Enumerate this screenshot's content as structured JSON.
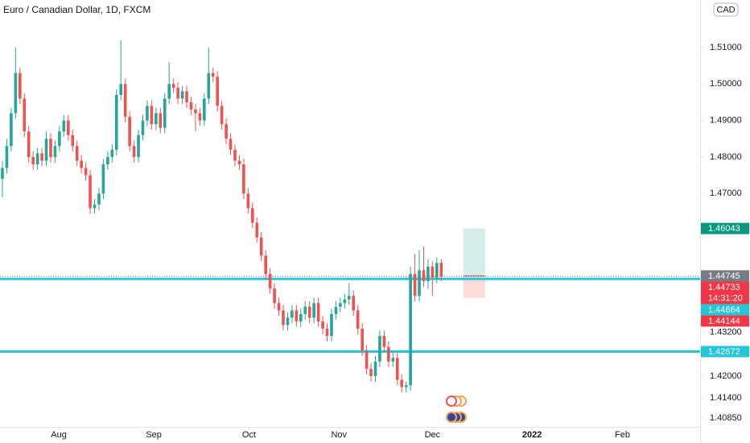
{
  "chart_data": {
    "type": "candlestick",
    "title": "Euro / Canadian Dollar, 1D, FXCM",
    "currency": "CAD",
    "up_color": "#26a69a",
    "down_color": "#ef5350",
    "xlim": [
      -0.55,
      159
    ],
    "ylim": [
      1.4061,
      1.523
    ],
    "xticks": [
      {
        "value": 12.85,
        "label": "Aug"
      },
      {
        "value": 34.5,
        "label": "Sep"
      },
      {
        "value": 56.2,
        "label": "Oct"
      },
      {
        "value": 76.7,
        "label": "Nov"
      },
      {
        "value": 98,
        "label": "Dec"
      },
      {
        "value": 120.7,
        "label": "2022"
      },
      {
        "value": 141.3,
        "label": "Feb"
      }
    ],
    "yticks": [
      {
        "value": 1.51,
        "label": "1.51000"
      },
      {
        "value": 1.5,
        "label": "1.50000"
      },
      {
        "value": 1.49,
        "label": "1.49000"
      },
      {
        "value": 1.48,
        "label": "1.48000"
      },
      {
        "value": 1.47,
        "label": "1.47000"
      },
      {
        "value": 1.432,
        "label": "1.43200"
      },
      {
        "value": 1.42,
        "label": "1.42000"
      },
      {
        "value": 1.414,
        "label": "1.41400"
      },
      {
        "value": 1.4085,
        "label": "1.40850"
      }
    ],
    "candles": [
      [
        1.474,
        1.479,
        1.469,
        1.477
      ],
      [
        1.477,
        1.485,
        1.4755,
        1.483
      ],
      [
        1.483,
        1.4935,
        1.4815,
        1.492
      ],
      [
        1.492,
        1.51,
        1.4905,
        1.503
      ],
      [
        1.503,
        1.5045,
        1.4945,
        1.496
      ],
      [
        1.496,
        1.4975,
        1.4855,
        1.487
      ],
      [
        1.487,
        1.4885,
        1.4785,
        1.48
      ],
      [
        1.48,
        1.4815,
        1.4765,
        1.478
      ],
      [
        1.478,
        1.4825,
        1.4765,
        1.481
      ],
      [
        1.481,
        1.4825,
        1.4775,
        1.479
      ],
      [
        1.479,
        1.487,
        1.4775,
        1.485
      ],
      [
        1.485,
        1.4865,
        1.4785,
        1.48
      ],
      [
        1.48,
        1.4845,
        1.4785,
        1.483
      ],
      [
        1.483,
        1.4885,
        1.4815,
        1.487
      ],
      [
        1.487,
        1.4915,
        1.4855,
        1.49
      ],
      [
        1.49,
        1.4915,
        1.4845,
        1.486
      ],
      [
        1.486,
        1.4875,
        1.4815,
        1.483
      ],
      [
        1.483,
        1.4845,
        1.4775,
        1.479
      ],
      [
        1.479,
        1.4805,
        1.4755,
        1.477
      ],
      [
        1.477,
        1.4785,
        1.4735,
        1.475
      ],
      [
        1.475,
        1.4765,
        1.4645,
        1.466
      ],
      [
        1.466,
        1.4685,
        1.4645,
        1.467
      ],
      [
        1.467,
        1.4715,
        1.4655,
        1.47
      ],
      [
        1.47,
        1.4795,
        1.4685,
        1.478
      ],
      [
        1.478,
        1.4815,
        1.4765,
        1.48
      ],
      [
        1.48,
        1.4835,
        1.4785,
        1.482
      ],
      [
        1.482,
        1.4985,
        1.4805,
        1.497
      ],
      [
        1.497,
        1.512,
        1.4955,
        1.5
      ],
      [
        1.5,
        1.5015,
        1.4895,
        1.491
      ],
      [
        1.491,
        1.4925,
        1.4815,
        1.483
      ],
      [
        1.483,
        1.4845,
        1.4785,
        1.48
      ],
      [
        1.48,
        1.4875,
        1.4785,
        1.486
      ],
      [
        1.486,
        1.4915,
        1.4845,
        1.49
      ],
      [
        1.49,
        1.4955,
        1.4885,
        1.494
      ],
      [
        1.494,
        1.4955,
        1.4875,
        1.489
      ],
      [
        1.489,
        1.4935,
        1.4875,
        1.492
      ],
      [
        1.492,
        1.4935,
        1.4865,
        1.488
      ],
      [
        1.488,
        1.4975,
        1.4865,
        1.496
      ],
      [
        1.496,
        1.506,
        1.4945,
        1.5
      ],
      [
        1.5,
        1.5015,
        1.4975,
        1.499
      ],
      [
        1.499,
        1.5005,
        1.4945,
        1.496
      ],
      [
        1.496,
        1.4995,
        1.4945,
        1.498
      ],
      [
        1.498,
        1.4995,
        1.4935,
        1.495
      ],
      [
        1.495,
        1.4965,
        1.4915,
        1.493
      ],
      [
        1.493,
        1.4945,
        1.487,
        1.492
      ],
      [
        1.492,
        1.4935,
        1.4885,
        1.49
      ],
      [
        1.49,
        1.4975,
        1.4885,
        1.496
      ],
      [
        1.496,
        1.51,
        1.4945,
        1.503
      ],
      [
        1.503,
        1.5045,
        1.5005,
        1.502
      ],
      [
        1.502,
        1.5035,
        1.4925,
        1.494
      ],
      [
        1.494,
        1.4955,
        1.4875,
        1.489
      ],
      [
        1.489,
        1.4905,
        1.4835,
        1.485
      ],
      [
        1.485,
        1.4865,
        1.4805,
        1.482
      ],
      [
        1.482,
        1.4835,
        1.4775,
        1.479
      ],
      [
        1.479,
        1.4805,
        1.4765,
        1.478
      ],
      [
        1.478,
        1.4795,
        1.4685,
        1.47
      ],
      [
        1.47,
        1.4715,
        1.4645,
        1.466
      ],
      [
        1.466,
        1.4675,
        1.4605,
        1.462
      ],
      [
        1.462,
        1.4635,
        1.4565,
        1.458
      ],
      [
        1.458,
        1.4595,
        1.4515,
        1.453
      ],
      [
        1.453,
        1.4545,
        1.4465,
        1.448
      ],
      [
        1.448,
        1.4495,
        1.4425,
        1.444
      ],
      [
        1.444,
        1.4455,
        1.4385,
        1.44
      ],
      [
        1.44,
        1.4415,
        1.4365,
        1.438
      ],
      [
        1.438,
        1.4395,
        1.4325,
        1.434
      ],
      [
        1.434,
        1.4375,
        1.4325,
        1.436
      ],
      [
        1.436,
        1.4395,
        1.4345,
        1.438
      ],
      [
        1.438,
        1.4395,
        1.4335,
        1.435
      ],
      [
        1.435,
        1.4385,
        1.4335,
        1.437
      ],
      [
        1.437,
        1.4405,
        1.4355,
        1.439
      ],
      [
        1.439,
        1.4405,
        1.4345,
        1.436
      ],
      [
        1.436,
        1.4415,
        1.4345,
        1.44
      ],
      [
        1.44,
        1.4415,
        1.4335,
        1.435
      ],
      [
        1.435,
        1.4365,
        1.4315,
        1.433
      ],
      [
        1.433,
        1.4345,
        1.4295,
        1.431
      ],
      [
        1.431,
        1.4385,
        1.4295,
        1.437
      ],
      [
        1.437,
        1.4405,
        1.4355,
        1.439
      ],
      [
        1.439,
        1.4415,
        1.4375,
        1.44
      ],
      [
        1.44,
        1.4425,
        1.4385,
        1.441
      ],
      [
        1.441,
        1.4455,
        1.4395,
        1.442
      ],
      [
        1.442,
        1.4435,
        1.4365,
        1.438
      ],
      [
        1.438,
        1.4395,
        1.4315,
        1.433
      ],
      [
        1.433,
        1.4345,
        1.4255,
        1.427
      ],
      [
        1.427,
        1.4285,
        1.4205,
        1.422
      ],
      [
        1.422,
        1.4235,
        1.4185,
        1.42
      ],
      [
        1.42,
        1.4255,
        1.4185,
        1.424
      ],
      [
        1.424,
        1.4325,
        1.4225,
        1.431
      ],
      [
        1.431,
        1.4325,
        1.4265,
        1.428
      ],
      [
        1.428,
        1.4295,
        1.4225,
        1.424
      ],
      [
        1.424,
        1.4265,
        1.4225,
        1.425
      ],
      [
        1.425,
        1.4265,
        1.4175,
        1.419
      ],
      [
        1.419,
        1.4205,
        1.4155,
        1.417
      ],
      [
        1.417,
        1.4185,
        1.4155,
        1.4175
      ],
      [
        1.4175,
        1.45,
        1.416,
        1.448
      ],
      [
        1.448,
        1.4535,
        1.4405,
        1.442
      ],
      [
        1.442,
        1.4545,
        1.4405,
        1.449
      ],
      [
        1.449,
        1.4555,
        1.4445,
        1.446
      ],
      [
        1.446,
        1.452,
        1.444,
        1.45
      ],
      [
        1.45,
        1.4515,
        1.442,
        1.447
      ],
      [
        1.447,
        1.4525,
        1.4455,
        1.451
      ],
      [
        1.451,
        1.452,
        1.446,
        1.4473
      ]
    ],
    "horizontal_lines": [
      {
        "value": 1.44664,
        "color": "#26c6da"
      },
      {
        "value": 1.42672,
        "color": "#26c6da"
      }
    ],
    "position": {
      "start": 105,
      "end": 110,
      "target": 1.46043,
      "entry": 1.44745,
      "stop": 1.44144
    },
    "price_labels": [
      {
        "value": 1.46043,
        "color": "#089981"
      },
      {
        "value": 1.44745,
        "color": "#787b86"
      },
      {
        "value": 1.44733,
        "color": "#f23645",
        "countdown": "14:31:20"
      },
      {
        "value": 1.44664,
        "color": "#26c6da"
      },
      {
        "value": 1.44144,
        "color": "#f23645"
      },
      {
        "value": 1.42672,
        "color": "#26c6da"
      }
    ]
  }
}
